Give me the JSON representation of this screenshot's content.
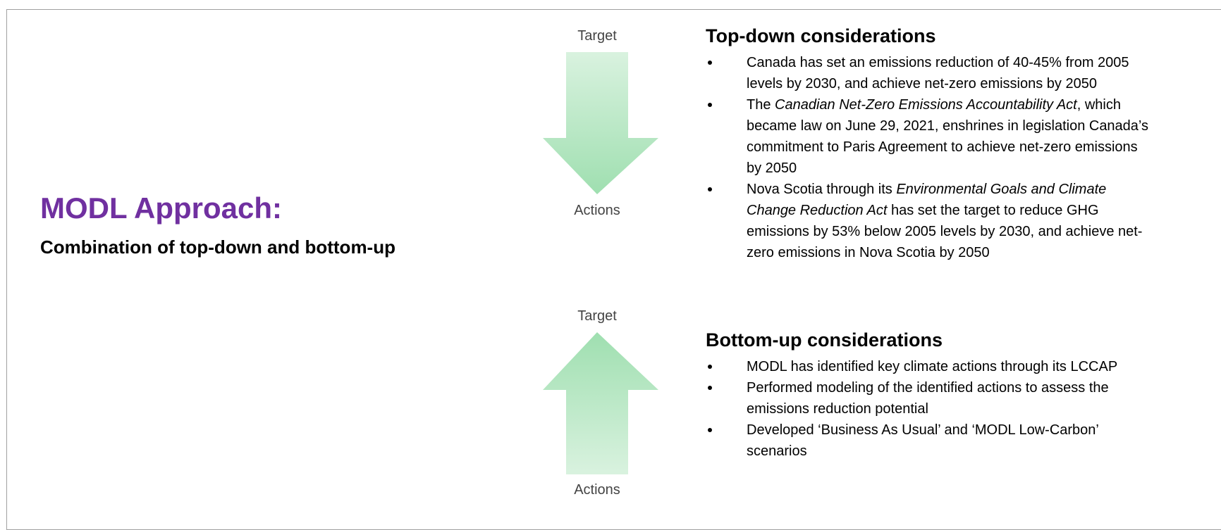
{
  "slide": {
    "title": "MODL Approach:",
    "subtitle": "Combination of top-down and bottom-up",
    "top_arrow": {
      "top_label": "Target",
      "bottom_label": "Actions"
    },
    "bottom_arrow": {
      "top_label": "Target",
      "bottom_label": "Actions"
    },
    "top_down": {
      "heading": "Top-down considerations",
      "bullets": [
        [
          [
            "Canada has set an emissions reduction of 40-45% from 2005"
          ],
          [
            "levels by 2030, and achieve net-zero emissions by 2050"
          ]
        ],
        [
          [
            "The ",
            {
              "italic": "Canadian Net-Zero Emissions Accountability Act"
            },
            ", which"
          ],
          [
            "became law on June 29, 2021, enshrines in legislation Canada’s"
          ],
          [
            "commitment to Paris Agreement to achieve net-zero emissions"
          ],
          [
            "by 2050"
          ]
        ],
        [
          [
            "Nova Scotia through its ",
            {
              "italic": "Environmental Goals and Climate"
            }
          ],
          [
            {
              "italic": "Change Reduction Act"
            },
            " has set the target to reduce GHG"
          ],
          [
            "emissions by 53% below 2005 levels by 2030, and achieve net-"
          ],
          [
            "zero emissions in Nova Scotia by 2050"
          ]
        ]
      ]
    },
    "bottom_up": {
      "heading": "Bottom-up considerations",
      "bullets": [
        [
          [
            "MODL has identified key climate actions through its LCCAP"
          ]
        ],
        [
          [
            "Performed modeling of the identified actions to assess the"
          ],
          [
            "emissions reduction potential"
          ]
        ],
        [
          [
            "Developed ‘Business As Usual’ and ‘MODL Low-Carbon’"
          ],
          [
            "scenarios"
          ]
        ]
      ]
    }
  }
}
